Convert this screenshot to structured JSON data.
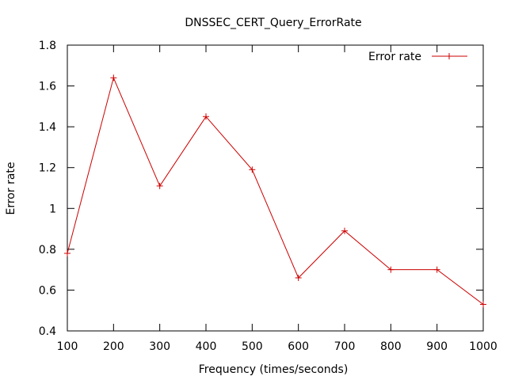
{
  "chart_data": {
    "type": "line",
    "title": "DNSSEC_CERT_Query_ErrorRate",
    "xlabel": "Frequency (times/seconds)",
    "ylabel": "Error rate",
    "xlim": [
      100,
      1000
    ],
    "ylim": [
      0.4,
      1.8
    ],
    "xticks": [
      100,
      200,
      300,
      400,
      500,
      600,
      700,
      800,
      900,
      1000
    ],
    "yticks": [
      0.4,
      0.6,
      0.8,
      1.0,
      1.2,
      1.4,
      1.6,
      1.8
    ],
    "ytick_labels": [
      "0.4",
      "0.6",
      "0.8",
      "1",
      "1.2",
      "1.4",
      "1.6",
      "1.8"
    ],
    "grid": false,
    "legend_position": "top-right",
    "series": [
      {
        "name": "Error rate",
        "color": "#cc0000",
        "marker": "plus",
        "x": [
          100,
          200,
          300,
          400,
          500,
          600,
          700,
          800,
          900,
          1000
        ],
        "y": [
          0.78,
          1.64,
          1.11,
          1.45,
          1.19,
          0.66,
          0.89,
          0.7,
          0.7,
          0.53
        ]
      }
    ]
  }
}
